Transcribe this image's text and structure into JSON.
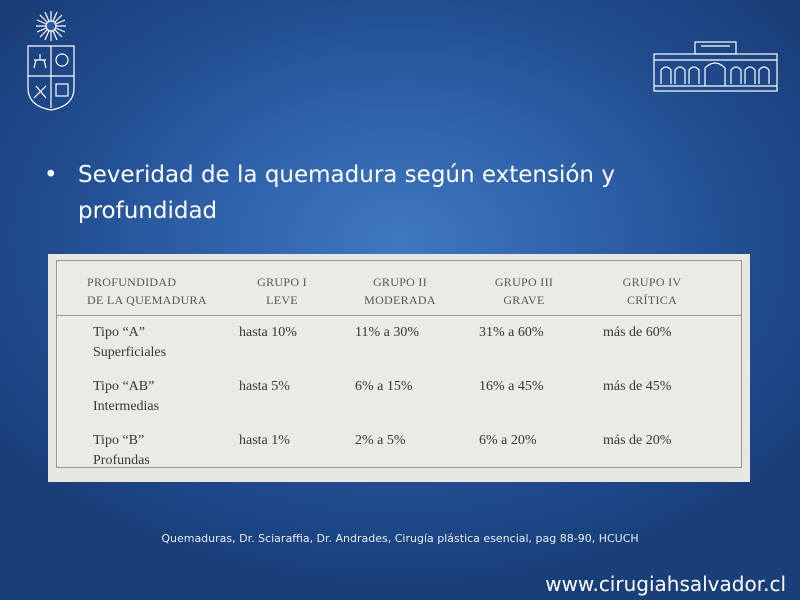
{
  "bullet": {
    "symbol": "•",
    "text": "Severidad de la quemadura según extensión y profundidad"
  },
  "table": {
    "headers": [
      [
        "Profundidad",
        "de la quemadura"
      ],
      [
        "Grupo I",
        "Leve"
      ],
      [
        "Grupo II",
        "Moderada"
      ],
      [
        "Grupo III",
        "Grave"
      ],
      [
        "Grupo IV",
        "Crítica"
      ]
    ],
    "rows": [
      {
        "depth": [
          "Tipo “A”",
          "Superficiales"
        ],
        "values": [
          "hasta 10%",
          "11% a 30%",
          "31% a 60%",
          "más de 60%"
        ]
      },
      {
        "depth": [
          "Tipo “AB”",
          "Intermedias"
        ],
        "values": [
          "hasta 5%",
          "6% a 15%",
          "16% a 45%",
          "más de 45%"
        ]
      },
      {
        "depth": [
          "Tipo “B”",
          "Profundas"
        ],
        "values": [
          "hasta 1%",
          "2% a 5%",
          "6% a 20%",
          "más de 20%"
        ]
      }
    ]
  },
  "caption": "Quemaduras, Dr. Sciaraffia, Dr. Andrades, Cirugía plástica esencial, pag 88-90, HCUCH",
  "website": "www.cirugiahsalvador.cl",
  "logos": {
    "left": "university-crest-icon",
    "right": "hospital-building-icon"
  }
}
